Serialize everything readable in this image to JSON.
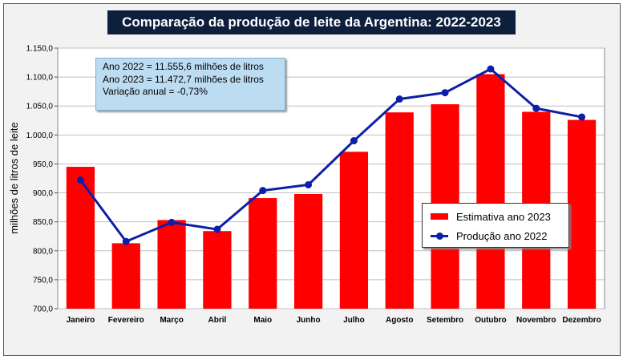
{
  "chart_data": {
    "type": "bar",
    "title": "Comparação da produção de leite da Argentina: 2022-2023",
    "ylabel": "milhões de litros de leite",
    "xlabel": "",
    "categories": [
      "Janeiro",
      "Fevereiro",
      "Março",
      "Abril",
      "Maio",
      "Junho",
      "Julho",
      "Agosto",
      "Setembro",
      "Outubro",
      "Novembro",
      "Dezembro"
    ],
    "ylim": [
      700,
      1150
    ],
    "yticks": [
      "700,0",
      "750,0",
      "800,0",
      "850,0",
      "900,0",
      "950,0",
      "1.000,0",
      "1.050,0",
      "1.100,0",
      "1.150,0"
    ],
    "grid": true,
    "legend_position": "right",
    "series": [
      {
        "name": "Estimativa ano 2023",
        "type": "bar",
        "color": "#ff0000",
        "values": [
          945,
          813,
          853,
          834,
          891,
          898,
          971,
          1039,
          1053,
          1105,
          1040,
          1026
        ]
      },
      {
        "name": "Produção ano 2022",
        "type": "line",
        "color": "#0d1fa8",
        "values": [
          922,
          816,
          849,
          837,
          904,
          914,
          990,
          1062,
          1073,
          1114,
          1046,
          1031
        ]
      }
    ],
    "annotation_lines": [
      "Ano 2022 = 11.555,6 milhões de litros",
      "Ano 2023 = 11.472,7 milhões de litros",
      "Variação anual = -0,73%"
    ]
  }
}
